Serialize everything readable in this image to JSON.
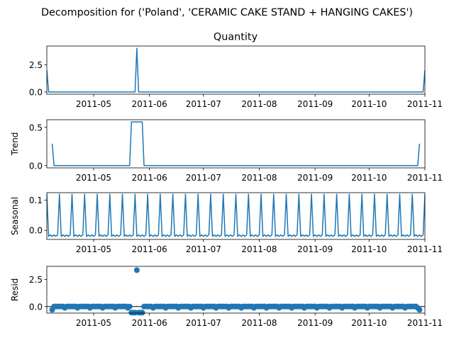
{
  "figure": {
    "suptitle": "Decomposition for ('Poland', 'CERAMIC CAKE STAND + HANGING CAKES')",
    "line_color": "#1f77b4"
  },
  "chart_data": [
    {
      "type": "line",
      "title": "Quantity",
      "ylabel": "",
      "xlim": [
        "2011-04-05",
        "2011-11-01"
      ],
      "ylim": [
        -0.2,
        4.2
      ],
      "yticks": [
        0.0,
        2.5
      ],
      "ytick_labels": [
        "0.0",
        "2.5"
      ],
      "xticks": [
        "2011-05-01",
        "2011-06-01",
        "2011-07-01",
        "2011-08-01",
        "2011-09-01",
        "2011-10-01",
        "2011-11-01"
      ],
      "xtick_labels": [
        "2011-05",
        "2011-06",
        "2011-07",
        "2011-08",
        "2011-09",
        "2011-10",
        "2011-11"
      ],
      "series": [
        {
          "points": [
            [
              "2011-04-05",
              2.0
            ],
            [
              "2011-04-06",
              0.0
            ],
            [
              "2011-05-24",
              0.0
            ],
            [
              "2011-05-25",
              4.0
            ],
            [
              "2011-05-26",
              0.0
            ],
            [
              "2011-10-31",
              0.0
            ],
            [
              "2011-11-01",
              2.0
            ]
          ]
        }
      ]
    },
    {
      "type": "line",
      "title": "",
      "ylabel": "Trend",
      "xlim": [
        "2011-04-05",
        "2011-11-01"
      ],
      "ylim": [
        -0.03,
        0.6
      ],
      "yticks": [
        0.0,
        0.5
      ],
      "ytick_labels": [
        "0.0",
        "0.5"
      ],
      "xticks": [
        "2011-05-01",
        "2011-06-01",
        "2011-07-01",
        "2011-08-01",
        "2011-09-01",
        "2011-10-01",
        "2011-11-01"
      ],
      "xtick_labels": [
        "2011-05",
        "2011-06",
        "2011-07",
        "2011-08",
        "2011-09",
        "2011-10",
        "2011-11"
      ],
      "series": [
        {
          "points": [
            [
              "2011-04-08",
              0.286
            ],
            [
              "2011-04-09",
              0.0
            ],
            [
              "2011-05-21",
              0.0
            ],
            [
              "2011-05-22",
              0.571
            ],
            [
              "2011-05-28",
              0.571
            ],
            [
              "2011-05-29",
              0.0
            ],
            [
              "2011-10-28",
              0.0
            ],
            [
              "2011-10-29",
              0.286
            ]
          ]
        }
      ]
    },
    {
      "type": "line",
      "title": "",
      "ylabel": "Seasonal",
      "xlim": [
        "2011-04-05",
        "2011-11-01"
      ],
      "ylim": [
        -0.03,
        0.125
      ],
      "yticks": [
        0.0,
        0.1
      ],
      "ytick_labels": [
        "0.0",
        "0.1"
      ],
      "xticks": [
        "2011-05-01",
        "2011-06-01",
        "2011-07-01",
        "2011-08-01",
        "2011-09-01",
        "2011-10-01",
        "2011-11-01"
      ],
      "xtick_labels": [
        "2011-05",
        "2011-06",
        "2011-07",
        "2011-08",
        "2011-09",
        "2011-10",
        "2011-11"
      ],
      "pattern": {
        "start": "2011-04-05",
        "end": "2011-11-01",
        "period_days": 7,
        "cycle_values": [
          0.12,
          -0.02,
          -0.015,
          -0.02,
          -0.015,
          -0.02,
          -0.015
        ]
      }
    },
    {
      "type": "scatter",
      "title": "",
      "ylabel": "Resid",
      "xlim": [
        "2011-04-05",
        "2011-11-01"
      ],
      "ylim": [
        -0.6,
        3.7
      ],
      "yticks": [
        0.0,
        2.5
      ],
      "ytick_labels": [
        "0.0",
        "2.5"
      ],
      "xticks": [
        "2011-05-01",
        "2011-06-01",
        "2011-07-01",
        "2011-08-01",
        "2011-09-01",
        "2011-10-01",
        "2011-11-01"
      ],
      "xtick_labels": [
        "2011-05",
        "2011-06",
        "2011-07",
        "2011-08",
        "2011-09",
        "2011-10",
        "2011-11"
      ],
      "baseline": 0.0,
      "points": [
        [
          "2011-04-08",
          -0.29
        ],
        [
          "2011-04-09",
          0.0
        ],
        [
          "2011-04-10",
          0.01
        ],
        [
          "2011-04-11",
          0.0
        ],
        [
          "2011-04-12",
          0.01
        ],
        [
          "2011-04-13",
          0.0
        ],
        [
          "2011-04-14",
          0.01
        ],
        [
          "2011-04-15",
          -0.12
        ],
        [
          "2011-04-16",
          0.0
        ],
        [
          "2011-04-17",
          0.01
        ],
        [
          "2011-04-18",
          0.0
        ],
        [
          "2011-04-19",
          0.01
        ],
        [
          "2011-04-20",
          0.0
        ],
        [
          "2011-04-21",
          0.01
        ],
        [
          "2011-04-22",
          -0.12
        ],
        [
          "2011-04-23",
          0.0
        ],
        [
          "2011-04-24",
          0.01
        ],
        [
          "2011-04-25",
          0.0
        ],
        [
          "2011-04-26",
          0.01
        ],
        [
          "2011-04-27",
          0.0
        ],
        [
          "2011-04-28",
          0.01
        ],
        [
          "2011-04-29",
          -0.12
        ],
        [
          "2011-04-30",
          0.0
        ],
        [
          "2011-05-01",
          0.01
        ],
        [
          "2011-05-02",
          0.0
        ],
        [
          "2011-05-03",
          0.01
        ],
        [
          "2011-05-04",
          0.0
        ],
        [
          "2011-05-05",
          0.01
        ],
        [
          "2011-05-06",
          -0.12
        ],
        [
          "2011-05-07",
          0.0
        ],
        [
          "2011-05-08",
          0.01
        ],
        [
          "2011-05-09",
          0.0
        ],
        [
          "2011-05-10",
          0.01
        ],
        [
          "2011-05-11",
          0.0
        ],
        [
          "2011-05-12",
          0.01
        ],
        [
          "2011-05-13",
          -0.12
        ],
        [
          "2011-05-14",
          0.0
        ],
        [
          "2011-05-15",
          0.01
        ],
        [
          "2011-05-16",
          0.0
        ],
        [
          "2011-05-17",
          0.01
        ],
        [
          "2011-05-18",
          0.0
        ],
        [
          "2011-05-19",
          0.01
        ],
        [
          "2011-05-20",
          -0.12
        ],
        [
          "2011-05-21",
          0.0
        ],
        [
          "2011-05-22",
          -0.56
        ],
        [
          "2011-05-23",
          -0.56
        ],
        [
          "2011-05-24",
          -0.56
        ],
        [
          "2011-05-25",
          3.35
        ],
        [
          "2011-05-26",
          -0.56
        ],
        [
          "2011-05-27",
          -0.56
        ],
        [
          "2011-05-28",
          -0.56
        ],
        [
          "2011-05-29",
          0.0
        ],
        [
          "2011-05-30",
          0.01
        ],
        [
          "2011-05-31",
          0.0
        ],
        [
          "2011-06-01",
          0.01
        ],
        [
          "2011-06-02",
          0.0
        ],
        [
          "2011-06-03",
          -0.12
        ],
        [
          "2011-06-04",
          0.0
        ],
        [
          "2011-06-05",
          0.01
        ],
        [
          "2011-06-06",
          0.0
        ],
        [
          "2011-06-07",
          0.01
        ],
        [
          "2011-06-08",
          0.0
        ],
        [
          "2011-06-09",
          0.01
        ],
        [
          "2011-06-10",
          -0.12
        ],
        [
          "2011-06-11",
          0.0
        ],
        [
          "2011-06-12",
          0.01
        ],
        [
          "2011-06-13",
          0.0
        ],
        [
          "2011-06-14",
          0.01
        ],
        [
          "2011-06-15",
          0.0
        ],
        [
          "2011-06-16",
          0.01
        ],
        [
          "2011-06-17",
          -0.12
        ],
        [
          "2011-06-18",
          0.0
        ],
        [
          "2011-06-19",
          0.01
        ],
        [
          "2011-06-20",
          0.0
        ],
        [
          "2011-06-21",
          0.01
        ],
        [
          "2011-06-22",
          0.0
        ],
        [
          "2011-06-23",
          0.01
        ],
        [
          "2011-06-24",
          -0.12
        ],
        [
          "2011-06-25",
          0.0
        ],
        [
          "2011-06-26",
          0.01
        ],
        [
          "2011-06-27",
          0.0
        ],
        [
          "2011-06-28",
          0.01
        ],
        [
          "2011-06-29",
          0.0
        ],
        [
          "2011-06-30",
          0.01
        ],
        [
          "2011-07-01",
          -0.12
        ],
        [
          "2011-07-02",
          0.0
        ],
        [
          "2011-07-03",
          0.01
        ],
        [
          "2011-07-04",
          0.0
        ],
        [
          "2011-07-05",
          0.01
        ],
        [
          "2011-07-06",
          0.0
        ],
        [
          "2011-07-07",
          0.01
        ],
        [
          "2011-07-08",
          -0.12
        ],
        [
          "2011-07-09",
          0.0
        ],
        [
          "2011-07-10",
          0.01
        ],
        [
          "2011-07-11",
          0.0
        ],
        [
          "2011-07-12",
          0.01
        ],
        [
          "2011-07-13",
          0.0
        ],
        [
          "2011-07-14",
          0.01
        ],
        [
          "2011-07-15",
          -0.12
        ],
        [
          "2011-07-16",
          0.0
        ],
        [
          "2011-07-17",
          0.01
        ],
        [
          "2011-07-18",
          0.0
        ],
        [
          "2011-07-19",
          0.01
        ],
        [
          "2011-07-20",
          0.0
        ],
        [
          "2011-07-21",
          0.01
        ],
        [
          "2011-07-22",
          -0.12
        ],
        [
          "2011-07-23",
          0.0
        ],
        [
          "2011-07-24",
          0.01
        ],
        [
          "2011-07-25",
          0.0
        ],
        [
          "2011-07-26",
          0.01
        ],
        [
          "2011-07-27",
          0.0
        ],
        [
          "2011-07-28",
          0.01
        ],
        [
          "2011-07-29",
          -0.12
        ],
        [
          "2011-07-30",
          0.0
        ],
        [
          "2011-07-31",
          0.01
        ],
        [
          "2011-08-01",
          0.0
        ],
        [
          "2011-08-02",
          0.01
        ],
        [
          "2011-08-03",
          0.0
        ],
        [
          "2011-08-04",
          0.01
        ],
        [
          "2011-08-05",
          -0.12
        ],
        [
          "2011-08-06",
          0.0
        ],
        [
          "2011-08-07",
          0.01
        ],
        [
          "2011-08-08",
          0.0
        ],
        [
          "2011-08-09",
          0.01
        ],
        [
          "2011-08-10",
          0.0
        ],
        [
          "2011-08-11",
          0.01
        ],
        [
          "2011-08-12",
          -0.12
        ],
        [
          "2011-08-13",
          0.0
        ],
        [
          "2011-08-14",
          0.01
        ],
        [
          "2011-08-15",
          0.0
        ],
        [
          "2011-08-16",
          0.01
        ],
        [
          "2011-08-17",
          0.0
        ],
        [
          "2011-08-18",
          0.01
        ],
        [
          "2011-08-19",
          -0.12
        ],
        [
          "2011-08-20",
          0.0
        ],
        [
          "2011-08-21",
          0.01
        ],
        [
          "2011-08-22",
          0.0
        ],
        [
          "2011-08-23",
          0.01
        ],
        [
          "2011-08-24",
          0.0
        ],
        [
          "2011-08-25",
          0.01
        ],
        [
          "2011-08-26",
          -0.12
        ],
        [
          "2011-08-27",
          0.0
        ],
        [
          "2011-08-28",
          0.01
        ],
        [
          "2011-08-29",
          0.0
        ],
        [
          "2011-08-30",
          0.01
        ],
        [
          "2011-08-31",
          0.0
        ],
        [
          "2011-09-01",
          0.01
        ],
        [
          "2011-09-02",
          -0.12
        ],
        [
          "2011-09-03",
          0.0
        ],
        [
          "2011-09-04",
          0.01
        ],
        [
          "2011-09-05",
          0.0
        ],
        [
          "2011-09-06",
          0.01
        ],
        [
          "2011-09-07",
          0.0
        ],
        [
          "2011-09-08",
          0.01
        ],
        [
          "2011-09-09",
          -0.12
        ],
        [
          "2011-09-10",
          0.0
        ],
        [
          "2011-09-11",
          0.01
        ],
        [
          "2011-09-12",
          0.0
        ],
        [
          "2011-09-13",
          0.01
        ],
        [
          "2011-09-14",
          0.0
        ],
        [
          "2011-09-15",
          0.01
        ],
        [
          "2011-09-16",
          -0.12
        ],
        [
          "2011-09-17",
          0.0
        ],
        [
          "2011-09-18",
          0.01
        ],
        [
          "2011-09-19",
          0.0
        ],
        [
          "2011-09-20",
          0.01
        ],
        [
          "2011-09-21",
          0.0
        ],
        [
          "2011-09-22",
          0.01
        ],
        [
          "2011-09-23",
          -0.12
        ],
        [
          "2011-09-24",
          0.0
        ],
        [
          "2011-09-25",
          0.01
        ],
        [
          "2011-09-26",
          0.0
        ],
        [
          "2011-09-27",
          0.01
        ],
        [
          "2011-09-28",
          0.0
        ],
        [
          "2011-09-29",
          0.01
        ],
        [
          "2011-09-30",
          -0.12
        ],
        [
          "2011-10-01",
          0.0
        ],
        [
          "2011-10-02",
          0.01
        ],
        [
          "2011-10-03",
          0.0
        ],
        [
          "2011-10-04",
          0.01
        ],
        [
          "2011-10-05",
          0.0
        ],
        [
          "2011-10-06",
          0.01
        ],
        [
          "2011-10-07",
          -0.12
        ],
        [
          "2011-10-08",
          0.0
        ],
        [
          "2011-10-09",
          0.01
        ],
        [
          "2011-10-10",
          0.0
        ],
        [
          "2011-10-11",
          0.01
        ],
        [
          "2011-10-12",
          0.0
        ],
        [
          "2011-10-13",
          0.01
        ],
        [
          "2011-10-14",
          -0.12
        ],
        [
          "2011-10-15",
          0.0
        ],
        [
          "2011-10-16",
          0.01
        ],
        [
          "2011-10-17",
          0.0
        ],
        [
          "2011-10-18",
          0.01
        ],
        [
          "2011-10-19",
          0.0
        ],
        [
          "2011-10-20",
          0.01
        ],
        [
          "2011-10-21",
          -0.12
        ],
        [
          "2011-10-22",
          0.0
        ],
        [
          "2011-10-23",
          0.01
        ],
        [
          "2011-10-24",
          0.0
        ],
        [
          "2011-10-25",
          0.01
        ],
        [
          "2011-10-26",
          0.0
        ],
        [
          "2011-10-27",
          0.01
        ],
        [
          "2011-10-28",
          -0.12
        ],
        [
          "2011-10-29",
          -0.29
        ]
      ]
    }
  ]
}
